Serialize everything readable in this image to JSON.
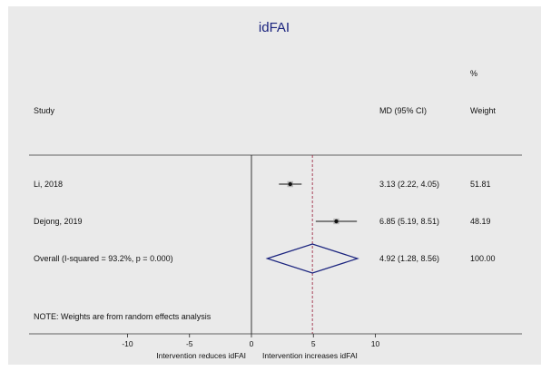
{
  "chart_data": {
    "type": "forest",
    "title": "idFAI",
    "header": {
      "study": "Study",
      "effect": "MD (95% CI)",
      "weight_pct": "%",
      "weight": "Weight"
    },
    "studies": [
      {
        "label": "Li, 2018",
        "estimate": 3.13,
        "lower": 2.22,
        "upper": 4.05,
        "ci_text": "3.13 (2.22, 4.05)",
        "weight": 51.81,
        "weight_text": "51.81"
      },
      {
        "label": "Dejong, 2019",
        "estimate": 6.85,
        "lower": 5.19,
        "upper": 8.51,
        "ci_text": "6.85 (5.19, 8.51)",
        "weight": 48.19,
        "weight_text": "48.19"
      }
    ],
    "overall": {
      "label": "Overall  (I-squared = 93.2%, p = 0.000)",
      "estimate": 4.92,
      "lower": 1.28,
      "upper": 8.56,
      "ci_text": "4.92 (1.28, 8.56)",
      "weight_text": "100.00"
    },
    "note": "NOTE: Weights are from random effects analysis",
    "x_axis": {
      "ticks": [
        -10,
        -5,
        0,
        5,
        10
      ],
      "tick_labels": [
        "-10",
        "-5",
        "0",
        "5",
        "10"
      ],
      "xlim": [
        -20,
        20
      ],
      "null_value": 0
    },
    "direction_labels": {
      "left": "Intervention reduces idFAI",
      "right": "Intervention increases idFAI"
    },
    "colors": {
      "background": "#eaeaea",
      "diamond": "#1a237e",
      "overall_line": "#a0324b",
      "text": "#111111"
    }
  }
}
